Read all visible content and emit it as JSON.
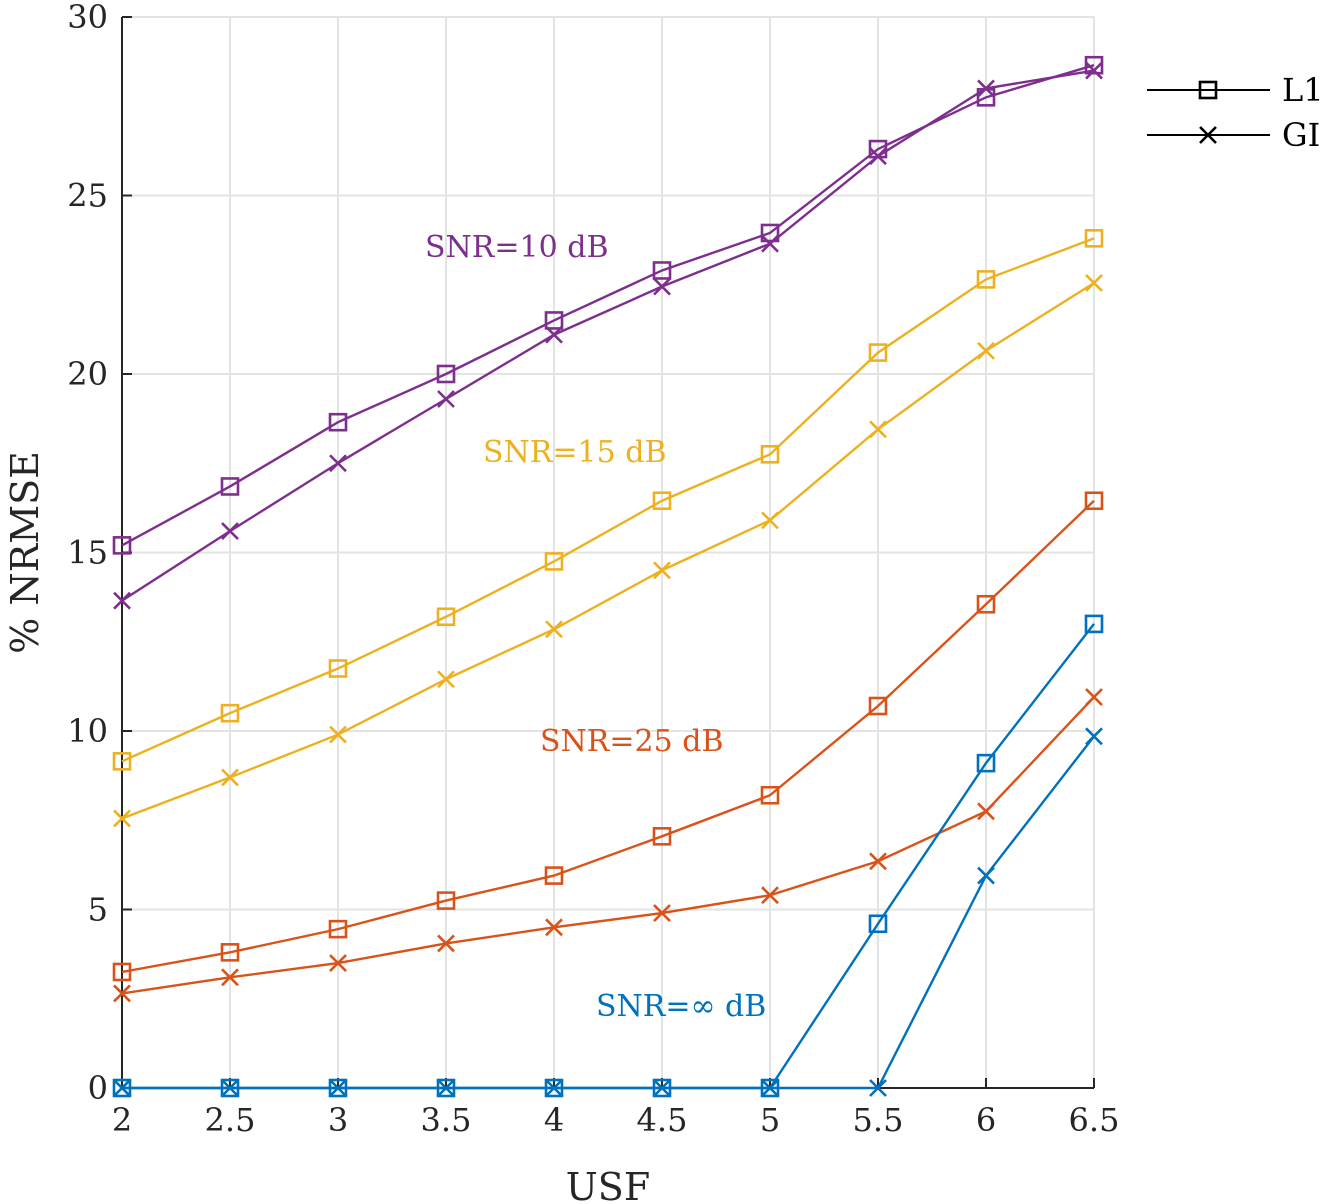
{
  "chart_data": {
    "type": "line",
    "xlabel": "USF",
    "ylabel": "% NRMSE",
    "x": [
      2,
      2.5,
      3,
      3.5,
      4,
      4.5,
      5,
      5.5,
      6,
      6.5
    ],
    "xticks": [
      "2",
      "2.5",
      "3",
      "3.5",
      "4",
      "4.5",
      "5",
      "5.5",
      "6",
      "6.5"
    ],
    "yticks": [
      "0",
      "5",
      "10",
      "15",
      "20",
      "25",
      "30"
    ],
    "xlim": [
      2,
      6.5
    ],
    "ylim": [
      0,
      30
    ],
    "grid": true,
    "legend": {
      "position": "top-right",
      "entries": [
        {
          "label": "L1",
          "marker": "square"
        },
        {
          "label": "GI",
          "marker": "x"
        }
      ]
    },
    "groups": [
      {
        "annotation": "SNR=10 dB",
        "color": "#7E2F8E",
        "series": [
          {
            "name": "L1",
            "marker": "square",
            "values": [
              15.2,
              16.85,
              18.65,
              20.0,
              21.5,
              22.9,
              23.95,
              26.3,
              27.75,
              28.65
            ]
          },
          {
            "name": "GI",
            "marker": "x",
            "values": [
              13.65,
              15.6,
              17.5,
              19.3,
              21.1,
              22.45,
              23.65,
              26.1,
              28.0,
              28.5
            ]
          }
        ]
      },
      {
        "annotation": "SNR=15 dB",
        "color": "#EDB120",
        "series": [
          {
            "name": "L1",
            "marker": "square",
            "values": [
              9.15,
              10.5,
              11.75,
              13.2,
              14.75,
              16.45,
              17.75,
              20.6,
              22.65,
              23.8
            ]
          },
          {
            "name": "GI",
            "marker": "x",
            "values": [
              7.55,
              8.7,
              9.9,
              11.45,
              12.85,
              14.5,
              15.9,
              18.45,
              20.65,
              22.55
            ]
          }
        ]
      },
      {
        "annotation": "SNR=25 dB",
        "color": "#D95319",
        "series": [
          {
            "name": "L1",
            "marker": "square",
            "values": [
              3.25,
              3.8,
              4.45,
              5.25,
              5.95,
              7.05,
              8.2,
              10.7,
              13.55,
              16.45
            ]
          },
          {
            "name": "GI",
            "marker": "x",
            "values": [
              2.65,
              3.1,
              3.5,
              4.05,
              4.5,
              4.9,
              5.4,
              6.35,
              7.75,
              10.95
            ]
          }
        ]
      },
      {
        "annotation": "SNR=∞ dB",
        "color": "#0072BD",
        "series": [
          {
            "name": "L1",
            "marker": "square",
            "values": [
              0,
              0,
              0,
              0,
              0,
              0,
              0,
              4.6,
              9.1,
              13.0
            ]
          },
          {
            "name": "GI",
            "marker": "x",
            "values": [
              0,
              0,
              0,
              0,
              0,
              0,
              0,
              0,
              5.95,
              9.85
            ]
          }
        ]
      }
    ]
  }
}
